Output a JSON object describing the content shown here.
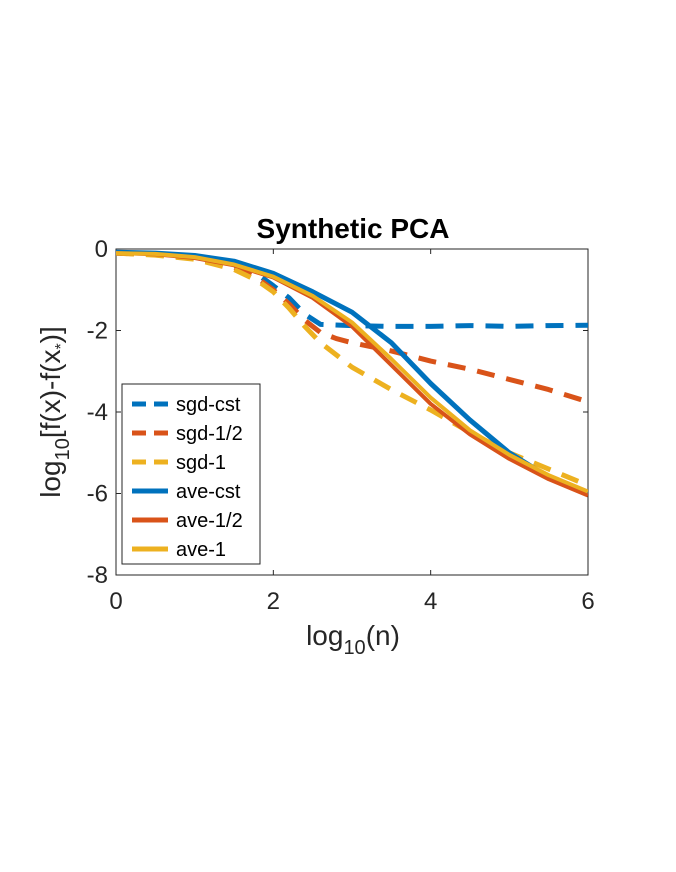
{
  "chart_data": {
    "type": "line",
    "title": "Synthetic PCA",
    "xlabel": {
      "base": "log",
      "sub": "10",
      "rest": "(n)"
    },
    "ylabel": {
      "base": "log",
      "sub": "10",
      "rest1": "[f(x)-f(x",
      "subsub": "*",
      "rest2": ")]"
    },
    "xlim": [
      0,
      6
    ],
    "ylim": [
      -8,
      0
    ],
    "xticks": [
      "0",
      "2",
      "4",
      "6"
    ],
    "yticks": [
      "0",
      "-2",
      "-4",
      "-6",
      "-8"
    ],
    "grid": false,
    "legend_position": "lower-left",
    "series": [
      {
        "name": "sgd-cst",
        "color": "#0072BD",
        "dashed": true,
        "x": [
          0,
          0.5,
          1.0,
          1.5,
          1.8,
          2.0,
          2.2,
          2.4,
          2.6,
          3.0,
          3.5,
          4.0,
          4.5,
          5.0,
          5.5,
          6.0
        ],
        "y": [
          -0.1,
          -0.12,
          -0.2,
          -0.4,
          -0.62,
          -0.9,
          -1.2,
          -1.6,
          -1.85,
          -1.88,
          -1.9,
          -1.9,
          -1.88,
          -1.9,
          -1.88,
          -1.87
        ]
      },
      {
        "name": "sgd-1/2",
        "color": "#D95319",
        "dashed": true,
        "x": [
          0,
          0.5,
          1.0,
          1.5,
          1.8,
          2.0,
          2.2,
          2.4,
          2.6,
          2.8,
          3.0,
          3.5,
          4.0,
          4.5,
          5.0,
          5.5,
          6.0
        ],
        "y": [
          -0.1,
          -0.14,
          -0.22,
          -0.45,
          -0.72,
          -1.0,
          -1.35,
          -1.75,
          -2.05,
          -2.2,
          -2.3,
          -2.5,
          -2.75,
          -2.95,
          -3.2,
          -3.45,
          -3.75
        ]
      },
      {
        "name": "sgd-1",
        "color": "#EDB120",
        "dashed": true,
        "x": [
          0,
          0.5,
          1.0,
          1.5,
          1.8,
          2.0,
          2.2,
          2.4,
          2.6,
          2.8,
          3.0,
          3.5,
          4.0,
          4.5,
          5.0,
          5.5,
          6.0
        ],
        "y": [
          -0.1,
          -0.15,
          -0.25,
          -0.5,
          -0.78,
          -1.05,
          -1.45,
          -1.9,
          -2.3,
          -2.6,
          -2.9,
          -3.45,
          -3.95,
          -4.5,
          -5.0,
          -5.4,
          -5.8
        ]
      },
      {
        "name": "ave-cst",
        "color": "#0072BD",
        "dashed": false,
        "x": [
          0,
          0.5,
          1.0,
          1.5,
          2.0,
          2.5,
          3.0,
          3.5,
          4.0,
          4.5,
          5.0,
          5.5,
          6.0
        ],
        "y": [
          -0.08,
          -0.1,
          -0.16,
          -0.3,
          -0.6,
          -1.05,
          -1.55,
          -2.3,
          -3.3,
          -4.2,
          -5.0,
          -5.6,
          -6.0
        ]
      },
      {
        "name": "ave-1/2",
        "color": "#D95319",
        "dashed": false,
        "x": [
          0,
          0.5,
          1.0,
          1.5,
          2.0,
          2.5,
          3.0,
          3.5,
          4.0,
          4.5,
          5.0,
          5.5,
          6.0
        ],
        "y": [
          -0.1,
          -0.13,
          -0.22,
          -0.4,
          -0.7,
          -1.2,
          -1.9,
          -2.85,
          -3.8,
          -4.55,
          -5.15,
          -5.65,
          -6.05
        ]
      },
      {
        "name": "ave-1",
        "color": "#EDB120",
        "dashed": false,
        "x": [
          0,
          0.5,
          1.0,
          1.5,
          2.0,
          2.5,
          3.0,
          3.5,
          4.0,
          4.5,
          5.0,
          5.5,
          6.0
        ],
        "y": [
          -0.1,
          -0.12,
          -0.2,
          -0.38,
          -0.68,
          -1.15,
          -1.8,
          -2.7,
          -3.65,
          -4.45,
          -5.05,
          -5.55,
          -5.95
        ]
      }
    ]
  }
}
